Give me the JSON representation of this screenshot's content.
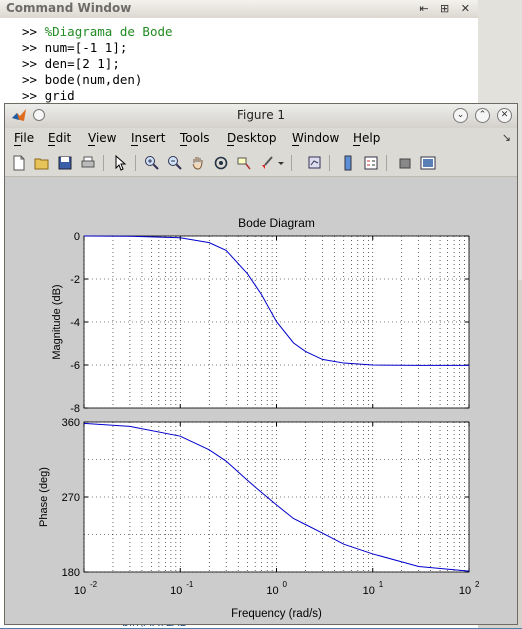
{
  "command_window": {
    "title": "Command Window",
    "prompt": ">>",
    "lines": [
      {
        "text": "%Diagrama de Bode",
        "is_comment": true
      },
      {
        "text": "num=[-1 1];",
        "is_comment": false
      },
      {
        "text": "den=[2 1];",
        "is_comment": false
      },
      {
        "text": "bode(num,den)",
        "is_comment": false
      },
      {
        "text": "grid",
        "is_comment": false
      }
    ],
    "bottom_text": "bin\\MATLAB"
  },
  "figure": {
    "title": "Figure 1",
    "menu": [
      "File",
      "Edit",
      "View",
      "Insert",
      "Tools",
      "Desktop",
      "Window",
      "Help"
    ],
    "menu_underline": [
      "F",
      "E",
      "V",
      "I",
      "T",
      "D",
      "W",
      "H"
    ]
  },
  "chart_data": {
    "type": "line",
    "title": "Bode Diagram",
    "xlabel": "Frequency  (rad/s)",
    "xscale": "log",
    "xlim": [
      0.01,
      100
    ],
    "x_ticks": [
      {
        "base": "10",
        "exp": "-2"
      },
      {
        "base": "10",
        "exp": "-1"
      },
      {
        "base": "10",
        "exp": "0"
      },
      {
        "base": "10",
        "exp": "1"
      },
      {
        "base": "10",
        "exp": "2"
      }
    ],
    "grid": true,
    "color": "#0000cc",
    "panels": [
      {
        "ylabel": "Magnitude (dB)",
        "ylim": [
          -8,
          0
        ],
        "y_ticks": [
          "0",
          "-2",
          "-4",
          "-6",
          "-8"
        ],
        "y_tick_values": [
          0,
          -2,
          -4,
          -6,
          -8
        ],
        "series": [
          {
            "x": [
              0.01,
              0.03,
              0.1,
              0.2,
              0.3,
              0.5,
              0.7,
              1,
              1.5,
              2,
              3,
              5,
              10,
              30,
              100
            ],
            "y": [
              0.0,
              -0.01,
              -0.08,
              -0.31,
              -0.67,
              -1.76,
              -2.73,
              -3.98,
              -4.97,
              -5.37,
              -5.74,
              -5.91,
              -6.0,
              -6.02,
              -6.02
            ]
          }
        ]
      },
      {
        "ylabel": "Phase (deg)",
        "ylim": [
          180,
          360
        ],
        "y_ticks": [
          "360",
          "270",
          "180"
        ],
        "y_tick_values": [
          360,
          270,
          180
        ],
        "series": [
          {
            "x": [
              0.01,
              0.03,
              0.1,
              0.2,
              0.3,
              0.5,
              0.7,
              1,
              1.5,
              2,
              3,
              5,
              10,
              30,
              100
            ],
            "y": [
              358.3,
              354.8,
              343.0,
              326.6,
              313.0,
              289.9,
              275.4,
              260.5,
              244.2,
              237.0,
              226.7,
              213.4,
              201.7,
              186.6,
              181.1
            ]
          }
        ]
      }
    ]
  }
}
